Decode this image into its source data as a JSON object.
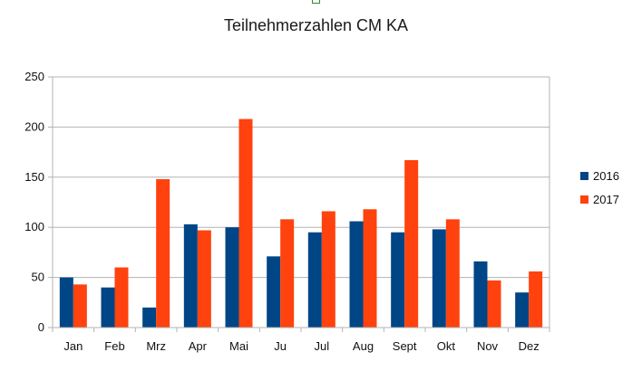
{
  "chart_data": {
    "type": "bar",
    "title": "Teilnehmerzahlen CM KA",
    "xlabel": "",
    "ylabel": "",
    "categories": [
      "Jan",
      "Feb",
      "Mrz",
      "Apr",
      "Mai",
      "Ju",
      "Jul",
      "Aug",
      "Sept",
      "Okt",
      "Nov",
      "Dez"
    ],
    "series": [
      {
        "name": "2016",
        "color": "#004586",
        "values": [
          50,
          40,
          20,
          103,
          100,
          71,
          95,
          106,
          95,
          98,
          66,
          35
        ]
      },
      {
        "name": "2017",
        "color": "#ff420e",
        "values": [
          43,
          60,
          148,
          97,
          208,
          108,
          116,
          118,
          167,
          108,
          47,
          56
        ]
      }
    ],
    "ylim": [
      0,
      250
    ],
    "yticks": [
      0,
      50,
      100,
      150,
      200,
      250
    ],
    "grid": true,
    "legend_position": "right"
  }
}
